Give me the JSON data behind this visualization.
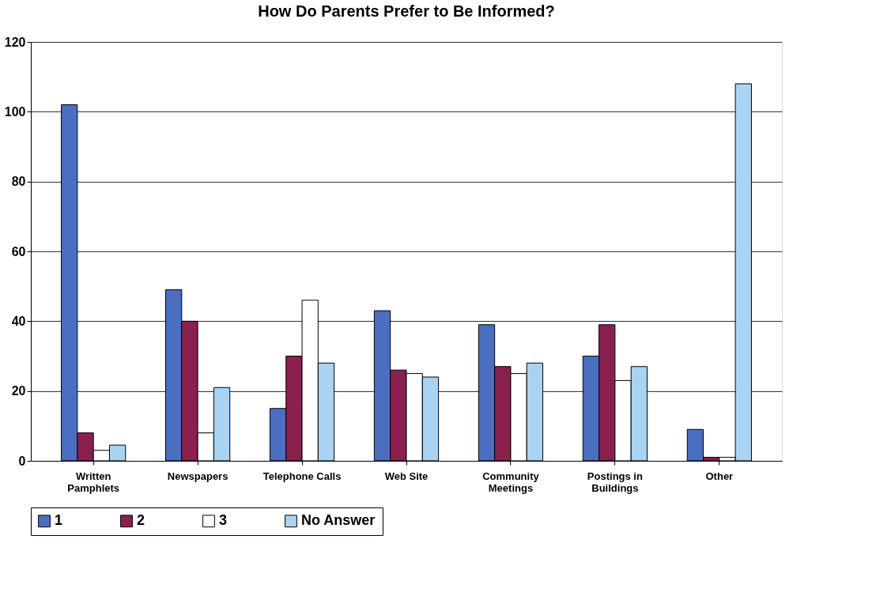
{
  "chart_data": {
    "type": "bar",
    "title": "How Do Parents Prefer to Be Informed?",
    "categories": [
      "Written Pamphlets",
      "Newspapers",
      "Telephone Calls",
      "Web Site",
      "Community Meetings",
      "Postings in Buildings",
      "Other"
    ],
    "series": [
      {
        "name": "1",
        "color": "#4a6fc0",
        "values": [
          102,
          49,
          15,
          43,
          39,
          30,
          9
        ]
      },
      {
        "name": "2",
        "color": "#8b1f4e",
        "values": [
          8,
          40,
          30,
          26,
          27,
          39,
          1
        ]
      },
      {
        "name": "3",
        "color": "#ffffff",
        "values": [
          3,
          8,
          46,
          25,
          25,
          23,
          1
        ]
      },
      {
        "name": "No Answer",
        "color": "#a9d3f2",
        "values": [
          4.5,
          21,
          28,
          24,
          28,
          27,
          108
        ]
      }
    ],
    "ylim": [
      0,
      120
    ],
    "yticks": [
      0,
      20,
      40,
      60,
      80,
      100,
      120
    ],
    "grid": "y",
    "legend": "bottom"
  }
}
